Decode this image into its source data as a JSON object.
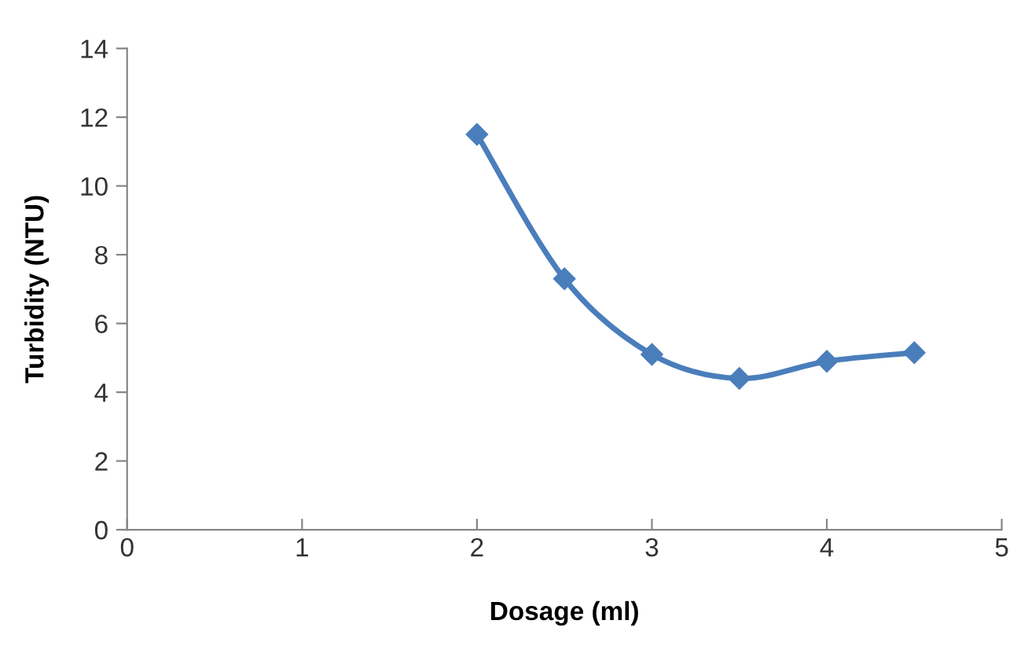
{
  "chart_data": {
    "type": "line",
    "xlabel": "Dosage (ml)",
    "ylabel": "Turbidity (NTU)",
    "x": [
      2,
      2.5,
      3,
      3.5,
      4,
      4.5
    ],
    "series": [
      {
        "color": "#4a7ebb",
        "values": [
          11.5,
          7.3,
          5.1,
          4.4,
          4.9,
          5.15
        ]
      }
    ],
    "xlim": [
      0,
      5
    ],
    "xticks": [
      0,
      1,
      2,
      3,
      4,
      5
    ],
    "ylim": [
      0,
      14
    ],
    "yticks": [
      0,
      2,
      4,
      6,
      8,
      10,
      12,
      14
    ],
    "marker": "diamond",
    "line_style": "solid",
    "grid": false,
    "legend": false
  }
}
